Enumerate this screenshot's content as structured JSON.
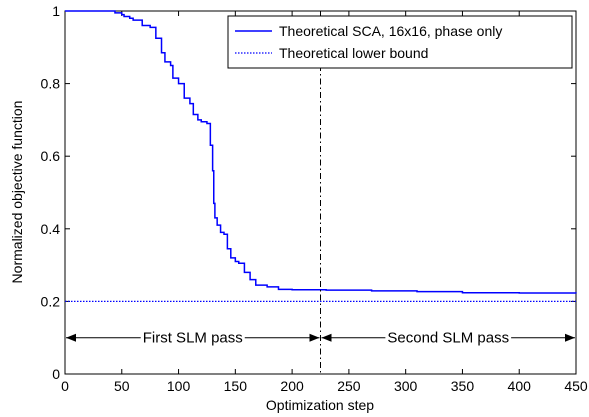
{
  "chart_data": {
    "type": "line",
    "title": "",
    "xlabel": "Optimization step",
    "ylabel": "Normalized objective function",
    "xlim": [
      0,
      450
    ],
    "ylim": [
      0,
      1
    ],
    "xticks": [
      0,
      50,
      100,
      150,
      200,
      250,
      300,
      350,
      400,
      450
    ],
    "yticks": [
      0,
      0.2,
      0.4,
      0.6,
      0.8,
      1
    ],
    "xtick_labels": [
      "0",
      "50",
      "100",
      "150",
      "200",
      "250",
      "300",
      "350",
      "400",
      "450"
    ],
    "ytick_labels": [
      "0",
      "0.2",
      "0.4",
      "0.6",
      "0.8",
      "1"
    ],
    "grid": false,
    "legend_position": "top-right",
    "series": [
      {
        "name": "Theoretical SCA, 16x16, phase only",
        "color": "#0000ff",
        "style": "solid",
        "x": [
          0,
          30,
          44,
          50,
          52,
          57,
          60,
          68,
          75,
          80,
          85,
          88,
          93,
          95,
          100,
          105,
          110,
          113,
          117,
          120,
          125,
          128,
          130,
          131,
          132,
          134,
          137,
          140,
          143,
          146,
          150,
          153,
          158,
          163,
          168,
          178,
          188,
          200,
          230,
          270,
          310,
          350,
          400,
          450
        ],
        "y": [
          1.0,
          1.0,
          0.995,
          0.99,
          0.985,
          0.98,
          0.975,
          0.96,
          0.955,
          0.925,
          0.885,
          0.86,
          0.85,
          0.815,
          0.8,
          0.76,
          0.745,
          0.715,
          0.7,
          0.695,
          0.69,
          0.63,
          0.56,
          0.47,
          0.43,
          0.41,
          0.39,
          0.385,
          0.345,
          0.32,
          0.31,
          0.305,
          0.28,
          0.26,
          0.245,
          0.24,
          0.233,
          0.232,
          0.231,
          0.229,
          0.227,
          0.224,
          0.223,
          0.222
        ]
      },
      {
        "name": "Theoretical lower bound",
        "color": "#0000ff",
        "style": "dotted",
        "x": [
          0,
          450
        ],
        "y": [
          0.2,
          0.2
        ]
      }
    ],
    "vline": {
      "x": 225,
      "style": "dash-dot",
      "color": "#000000"
    },
    "annotations": [
      {
        "text": "First SLM pass",
        "x_from": 0,
        "x_to": 225,
        "y": 0.1
      },
      {
        "text": "Second SLM pass",
        "x_from": 225,
        "x_to": 450,
        "y": 0.1
      }
    ]
  }
}
